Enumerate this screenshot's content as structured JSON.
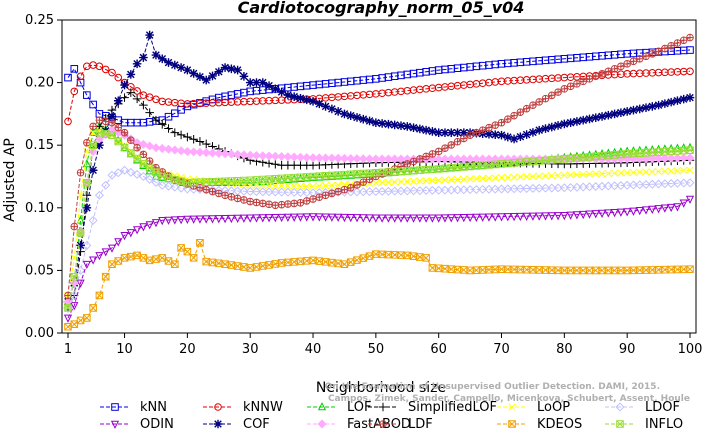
{
  "chart_data": {
    "type": "line",
    "title": "Cardiotocography_norm_05_v04",
    "xlabel": "Neighborhood size",
    "ylabel": "Adjusted AP",
    "xlim": [
      1,
      100
    ],
    "ylim": [
      0,
      0.25
    ],
    "xticks": [
      1,
      10,
      20,
      30,
      40,
      50,
      60,
      70,
      80,
      90,
      100
    ],
    "yticks": [
      "0.00",
      "0.05",
      "0.10",
      "0.15",
      "0.20",
      "0.25"
    ],
    "grid": false,
    "legend_position": "bottom",
    "watermark": [
      "Campos, Zimek, Sander, Campello, Micenkova, Schubert, Assent, Houle",
      "On the Evaluation of Unsupervised Outlier Detection. DAMI, 2015."
    ],
    "series": [
      {
        "name": "kNN",
        "color": "#0000e0",
        "marker": "square",
        "anchors": [
          [
            1,
            0.204
          ],
          [
            2,
            0.211
          ],
          [
            3,
            0.2
          ],
          [
            4,
            0.19
          ],
          [
            6,
            0.175
          ],
          [
            8,
            0.172
          ],
          [
            10,
            0.168
          ],
          [
            13,
            0.168
          ],
          [
            16,
            0.17
          ],
          [
            20,
            0.181
          ],
          [
            25,
            0.188
          ],
          [
            30,
            0.193
          ],
          [
            40,
            0.198
          ],
          [
            50,
            0.203
          ],
          [
            60,
            0.21
          ],
          [
            70,
            0.215
          ],
          [
            80,
            0.219
          ],
          [
            90,
            0.223
          ],
          [
            100,
            0.226
          ]
        ]
      },
      {
        "name": "kNNW",
        "color": "#e00000",
        "marker": "circle",
        "anchors": [
          [
            1,
            0.169
          ],
          [
            2,
            0.193
          ],
          [
            3,
            0.205
          ],
          [
            4,
            0.213
          ],
          [
            5,
            0.214
          ],
          [
            6,
            0.213
          ],
          [
            8,
            0.208
          ],
          [
            10,
            0.2
          ],
          [
            13,
            0.19
          ],
          [
            16,
            0.185
          ],
          [
            20,
            0.183
          ],
          [
            30,
            0.185
          ],
          [
            40,
            0.187
          ],
          [
            50,
            0.191
          ],
          [
            60,
            0.196
          ],
          [
            70,
            0.201
          ],
          [
            80,
            0.204
          ],
          [
            90,
            0.207
          ],
          [
            100,
            0.209
          ]
        ]
      },
      {
        "name": "LOF",
        "color": "#00cc00",
        "marker": "triangle",
        "anchors": [
          [
            1,
            0.025
          ],
          [
            2,
            0.04
          ],
          [
            3,
            0.09
          ],
          [
            4,
            0.135
          ],
          [
            5,
            0.16
          ],
          [
            6,
            0.165
          ],
          [
            8,
            0.16
          ],
          [
            10,
            0.148
          ],
          [
            12,
            0.138
          ],
          [
            15,
            0.125
          ],
          [
            20,
            0.12
          ],
          [
            30,
            0.12
          ],
          [
            40,
            0.124
          ],
          [
            50,
            0.127
          ],
          [
            60,
            0.131
          ],
          [
            70,
            0.135
          ],
          [
            80,
            0.14
          ],
          [
            90,
            0.145
          ],
          [
            100,
            0.148
          ]
        ]
      },
      {
        "name": "SimplifiedLOF",
        "color": "#000000",
        "marker": "plus",
        "anchors": [
          [
            1,
            0.02
          ],
          [
            2,
            0.03
          ],
          [
            3,
            0.065
          ],
          [
            4,
            0.11
          ],
          [
            5,
            0.148
          ],
          [
            6,
            0.165
          ],
          [
            8,
            0.178
          ],
          [
            10,
            0.188
          ],
          [
            11,
            0.192
          ],
          [
            13,
            0.182
          ],
          [
            15,
            0.17
          ],
          [
            18,
            0.16
          ],
          [
            22,
            0.153
          ],
          [
            26,
            0.145
          ],
          [
            30,
            0.138
          ],
          [
            35,
            0.134
          ],
          [
            40,
            0.134
          ],
          [
            50,
            0.136
          ],
          [
            60,
            0.137
          ],
          [
            70,
            0.136
          ],
          [
            80,
            0.135
          ],
          [
            90,
            0.136
          ],
          [
            100,
            0.138
          ]
        ]
      },
      {
        "name": "LoOP",
        "color": "#ffff00",
        "marker": "x",
        "anchors": [
          [
            1,
            0.03
          ],
          [
            2,
            0.06
          ],
          [
            3,
            0.11
          ],
          [
            4,
            0.145
          ],
          [
            5,
            0.16
          ],
          [
            6,
            0.162
          ],
          [
            8,
            0.158
          ],
          [
            10,
            0.15
          ],
          [
            12,
            0.14
          ],
          [
            15,
            0.13
          ],
          [
            20,
            0.123
          ],
          [
            30,
            0.118
          ],
          [
            40,
            0.117
          ],
          [
            50,
            0.12
          ],
          [
            60,
            0.122
          ],
          [
            70,
            0.124
          ],
          [
            80,
            0.126
          ],
          [
            90,
            0.128
          ],
          [
            100,
            0.13
          ]
        ]
      },
      {
        "name": "LDOF",
        "color": "#c0c0ff",
        "marker": "diamond",
        "anchors": [
          [
            1,
            0.02
          ],
          [
            2,
            0.03
          ],
          [
            3,
            0.05
          ],
          [
            4,
            0.07
          ],
          [
            5,
            0.09
          ],
          [
            6,
            0.11
          ],
          [
            8,
            0.126
          ],
          [
            10,
            0.13
          ],
          [
            13,
            0.125
          ],
          [
            16,
            0.118
          ],
          [
            20,
            0.115
          ],
          [
            30,
            0.113
          ],
          [
            40,
            0.112
          ],
          [
            50,
            0.113
          ],
          [
            60,
            0.114
          ],
          [
            70,
            0.115
          ],
          [
            80,
            0.116
          ],
          [
            90,
            0.118
          ],
          [
            100,
            0.12
          ]
        ]
      },
      {
        "name": "ODIN",
        "color": "#9900cc",
        "marker": "triangle-down",
        "anchors": [
          [
            1,
            0.012
          ],
          [
            2,
            0.022
          ],
          [
            3,
            0.04
          ],
          [
            4,
            0.055
          ],
          [
            6,
            0.062
          ],
          [
            8,
            0.068
          ],
          [
            10,
            0.078
          ],
          [
            13,
            0.085
          ],
          [
            16,
            0.09
          ],
          [
            20,
            0.091
          ],
          [
            30,
            0.092
          ],
          [
            40,
            0.093
          ],
          [
            50,
            0.092
          ],
          [
            60,
            0.092
          ],
          [
            70,
            0.093
          ],
          [
            80,
            0.094
          ],
          [
            90,
            0.097
          ],
          [
            98,
            0.101
          ],
          [
            100,
            0.107
          ]
        ]
      },
      {
        "name": "COF",
        "color": "#000080",
        "marker": "asterisk",
        "anchors": [
          [
            1,
            0.025
          ],
          [
            2,
            0.04
          ],
          [
            3,
            0.07
          ],
          [
            4,
            0.1
          ],
          [
            5,
            0.13
          ],
          [
            6,
            0.15
          ],
          [
            8,
            0.173
          ],
          [
            10,
            0.198
          ],
          [
            12,
            0.215
          ],
          [
            13,
            0.22
          ],
          [
            14,
            0.238
          ],
          [
            15,
            0.222
          ],
          [
            17,
            0.216
          ],
          [
            20,
            0.21
          ],
          [
            23,
            0.202
          ],
          [
            26,
            0.212
          ],
          [
            28,
            0.21
          ],
          [
            30,
            0.2
          ],
          [
            32,
            0.2
          ],
          [
            34,
            0.195
          ],
          [
            36,
            0.19
          ],
          [
            40,
            0.185
          ],
          [
            45,
            0.175
          ],
          [
            50,
            0.168
          ],
          [
            55,
            0.165
          ],
          [
            60,
            0.16
          ],
          [
            65,
            0.16
          ],
          [
            70,
            0.158
          ],
          [
            72,
            0.155
          ],
          [
            76,
            0.162
          ],
          [
            80,
            0.167
          ],
          [
            85,
            0.172
          ],
          [
            90,
            0.177
          ],
          [
            95,
            0.182
          ],
          [
            100,
            0.188
          ]
        ]
      },
      {
        "name": "FastABOD",
        "color": "#ffaaff",
        "marker": "diamond-filled",
        "anchors": [
          [
            1,
            0.025
          ],
          [
            2,
            0.04
          ],
          [
            3,
            0.08
          ],
          [
            4,
            0.12
          ],
          [
            5,
            0.145
          ],
          [
            6,
            0.155
          ],
          [
            8,
            0.162
          ],
          [
            10,
            0.158
          ],
          [
            12,
            0.152
          ],
          [
            15,
            0.148
          ],
          [
            20,
            0.145
          ],
          [
            30,
            0.142
          ],
          [
            40,
            0.14
          ],
          [
            50,
            0.139
          ],
          [
            60,
            0.139
          ],
          [
            70,
            0.139
          ],
          [
            80,
            0.139
          ],
          [
            90,
            0.139
          ],
          [
            100,
            0.14
          ]
        ]
      },
      {
        "name": "LDF",
        "color": "#c04040",
        "marker": "circle-plus",
        "anchors": [
          [
            1,
            0.03
          ],
          [
            2,
            0.085
          ],
          [
            3,
            0.128
          ],
          [
            4,
            0.152
          ],
          [
            5,
            0.165
          ],
          [
            6,
            0.17
          ],
          [
            8,
            0.168
          ],
          [
            10,
            0.16
          ],
          [
            12,
            0.148
          ],
          [
            15,
            0.132
          ],
          [
            18,
            0.122
          ],
          [
            22,
            0.116
          ],
          [
            26,
            0.11
          ],
          [
            30,
            0.105
          ],
          [
            34,
            0.102
          ],
          [
            38,
            0.104
          ],
          [
            42,
            0.11
          ],
          [
            46,
            0.116
          ],
          [
            50,
            0.125
          ],
          [
            55,
            0.135
          ],
          [
            60,
            0.145
          ],
          [
            65,
            0.158
          ],
          [
            70,
            0.168
          ],
          [
            75,
            0.182
          ],
          [
            80,
            0.195
          ],
          [
            85,
            0.205
          ],
          [
            90,
            0.215
          ],
          [
            95,
            0.225
          ],
          [
            100,
            0.236
          ]
        ]
      },
      {
        "name": "KDEOS",
        "color": "#f0a000",
        "marker": "square-x",
        "anchors": [
          [
            1,
            0.005
          ],
          [
            2,
            0.007
          ],
          [
            3,
            0.01
          ],
          [
            4,
            0.012
          ],
          [
            5,
            0.02
          ],
          [
            6,
            0.03
          ],
          [
            7,
            0.045
          ],
          [
            8,
            0.055
          ],
          [
            10,
            0.06
          ],
          [
            12,
            0.062
          ],
          [
            14,
            0.058
          ],
          [
            16,
            0.06
          ],
          [
            18,
            0.055
          ],
          [
            19,
            0.068
          ],
          [
            20,
            0.065
          ],
          [
            21,
            0.06
          ],
          [
            22,
            0.072
          ],
          [
            23,
            0.057
          ],
          [
            26,
            0.055
          ],
          [
            30,
            0.052
          ],
          [
            35,
            0.056
          ],
          [
            40,
            0.058
          ],
          [
            45,
            0.055
          ],
          [
            50,
            0.063
          ],
          [
            55,
            0.062
          ],
          [
            58,
            0.06
          ],
          [
            59,
            0.052
          ],
          [
            65,
            0.05
          ],
          [
            70,
            0.051
          ],
          [
            80,
            0.05
          ],
          [
            90,
            0.05
          ],
          [
            100,
            0.051
          ]
        ]
      },
      {
        "name": "INFLO",
        "color": "#99dd33",
        "marker": "square-cross",
        "anchors": [
          [
            1,
            0.02
          ],
          [
            2,
            0.045
          ],
          [
            3,
            0.08
          ],
          [
            4,
            0.12
          ],
          [
            5,
            0.15
          ],
          [
            6,
            0.16
          ],
          [
            8,
            0.158
          ],
          [
            10,
            0.148
          ],
          [
            13,
            0.135
          ],
          [
            16,
            0.125
          ],
          [
            20,
            0.12
          ],
          [
            30,
            0.122
          ],
          [
            40,
            0.125
          ],
          [
            50,
            0.128
          ],
          [
            60,
            0.131
          ],
          [
            70,
            0.135
          ],
          [
            80,
            0.139
          ],
          [
            90,
            0.143
          ],
          [
            100,
            0.146
          ]
        ]
      }
    ]
  }
}
